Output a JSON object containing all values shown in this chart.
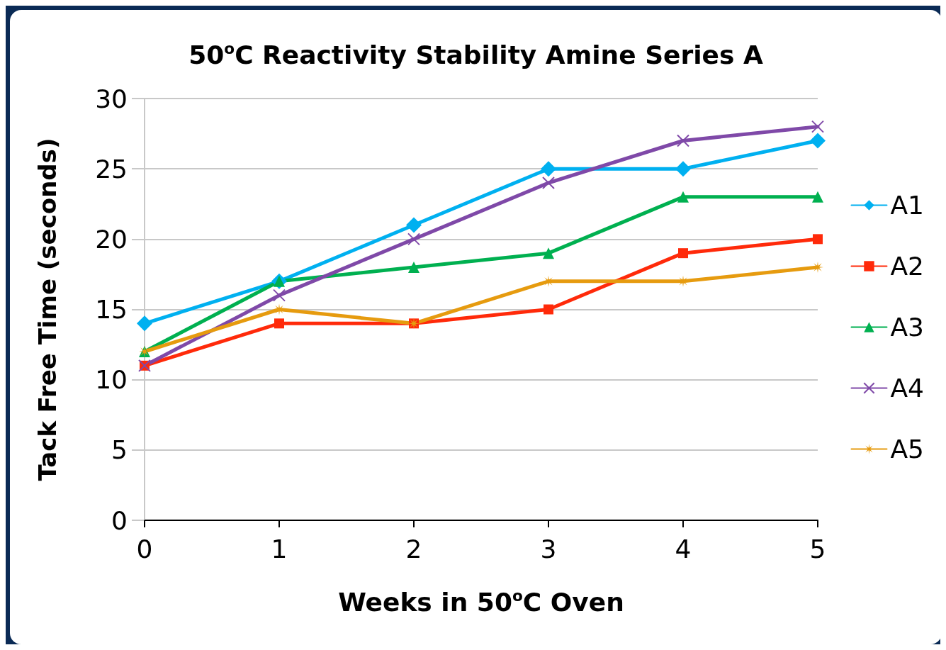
{
  "chart_data": {
    "type": "line",
    "title": "50$^{o}$C Reactivity Stability Amine Series A",
    "xlabel": "Weeks in 50$^{o}$C Oven",
    "ylabel": "Tack Free Time (seconds)",
    "x": [
      0,
      1,
      2,
      3,
      4,
      5
    ],
    "xlim": [
      0,
      5
    ],
    "xticks": [
      0,
      1,
      2,
      3,
      4,
      5
    ],
    "ylim": [
      0,
      30
    ],
    "yticks": [
      0,
      5,
      10,
      15,
      20,
      25,
      30
    ],
    "grid": "y",
    "legend": "right",
    "series": [
      {
        "name": "A1",
        "color": "#00b0f0",
        "marker": "diamond",
        "values": [
          14,
          17,
          21,
          25,
          25,
          27
        ]
      },
      {
        "name": "A2",
        "color": "#ff2a0a",
        "marker": "square",
        "values": [
          11,
          14,
          14,
          15,
          19,
          20
        ]
      },
      {
        "name": "A3",
        "color": "#00b050",
        "marker": "triangle",
        "values": [
          12,
          17,
          18,
          19,
          23,
          23
        ]
      },
      {
        "name": "A4",
        "color": "#7f49a8",
        "marker": "cross",
        "values": [
          11,
          16,
          20,
          24,
          27,
          28
        ]
      },
      {
        "name": "A5",
        "color": "#e69b0f",
        "marker": "star",
        "values": [
          12,
          15,
          14,
          17,
          17,
          18
        ]
      }
    ]
  }
}
